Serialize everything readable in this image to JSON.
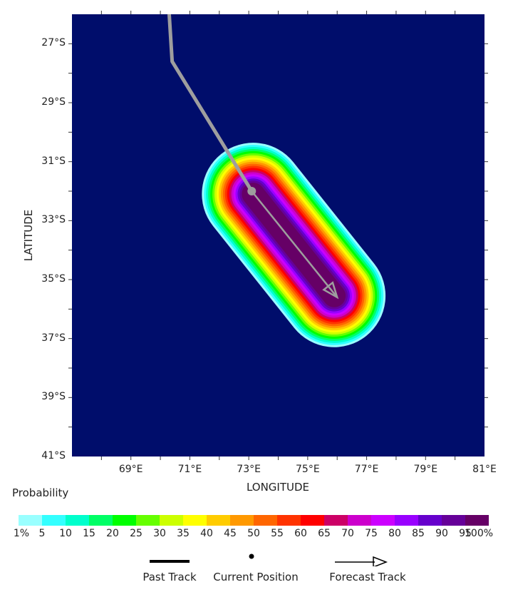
{
  "axes": {
    "x_title": "LONGITUDE",
    "y_title": "LATITUDE",
    "y_ticks": [
      "27°S",
      "29°S",
      "31°S",
      "33°S",
      "35°S",
      "37°S",
      "39°S",
      "41°S"
    ],
    "x_ticks": [
      "69°E",
      "71°E",
      "73°E",
      "75°E",
      "77°E",
      "79°E",
      "81°E"
    ],
    "lon_range": [
      67,
      81
    ],
    "lat_range": [
      -41,
      -26
    ]
  },
  "map": {
    "background_color": "#000d6b",
    "past_track": [
      [
        70.3,
        -26.0
      ],
      [
        70.4,
        -27.6
      ],
      [
        73.1,
        -32.0
      ]
    ],
    "current_position": [
      73.1,
      -32.0
    ],
    "forecast_track": [
      [
        73.1,
        -32.0
      ],
      [
        76.0,
        -35.6
      ]
    ],
    "track_color": "#9e9e9e"
  },
  "legend": {
    "probability_title": "Probability",
    "colors": [
      "#99ffff",
      "#33ffff",
      "#00ffcc",
      "#00ff66",
      "#00ff00",
      "#66ff00",
      "#ccff00",
      "#ffff00",
      "#ffcc00",
      "#ff9900",
      "#ff6600",
      "#ff3300",
      "#ff0000",
      "#cc0066",
      "#cc00cc",
      "#cc00ff",
      "#9900ff",
      "#6600cc",
      "#660099",
      "#660066"
    ],
    "labels": [
      "1%",
      "5",
      "10",
      "15",
      "20",
      "25",
      "30",
      "35",
      "40",
      "45",
      "50",
      "55",
      "60",
      "65",
      "70",
      "75",
      "80",
      "85",
      "90",
      "95",
      "100%"
    ],
    "past_track_label": "Past Track",
    "current_position_label": "Current Position",
    "forecast_track_label": "Forecast Track"
  }
}
